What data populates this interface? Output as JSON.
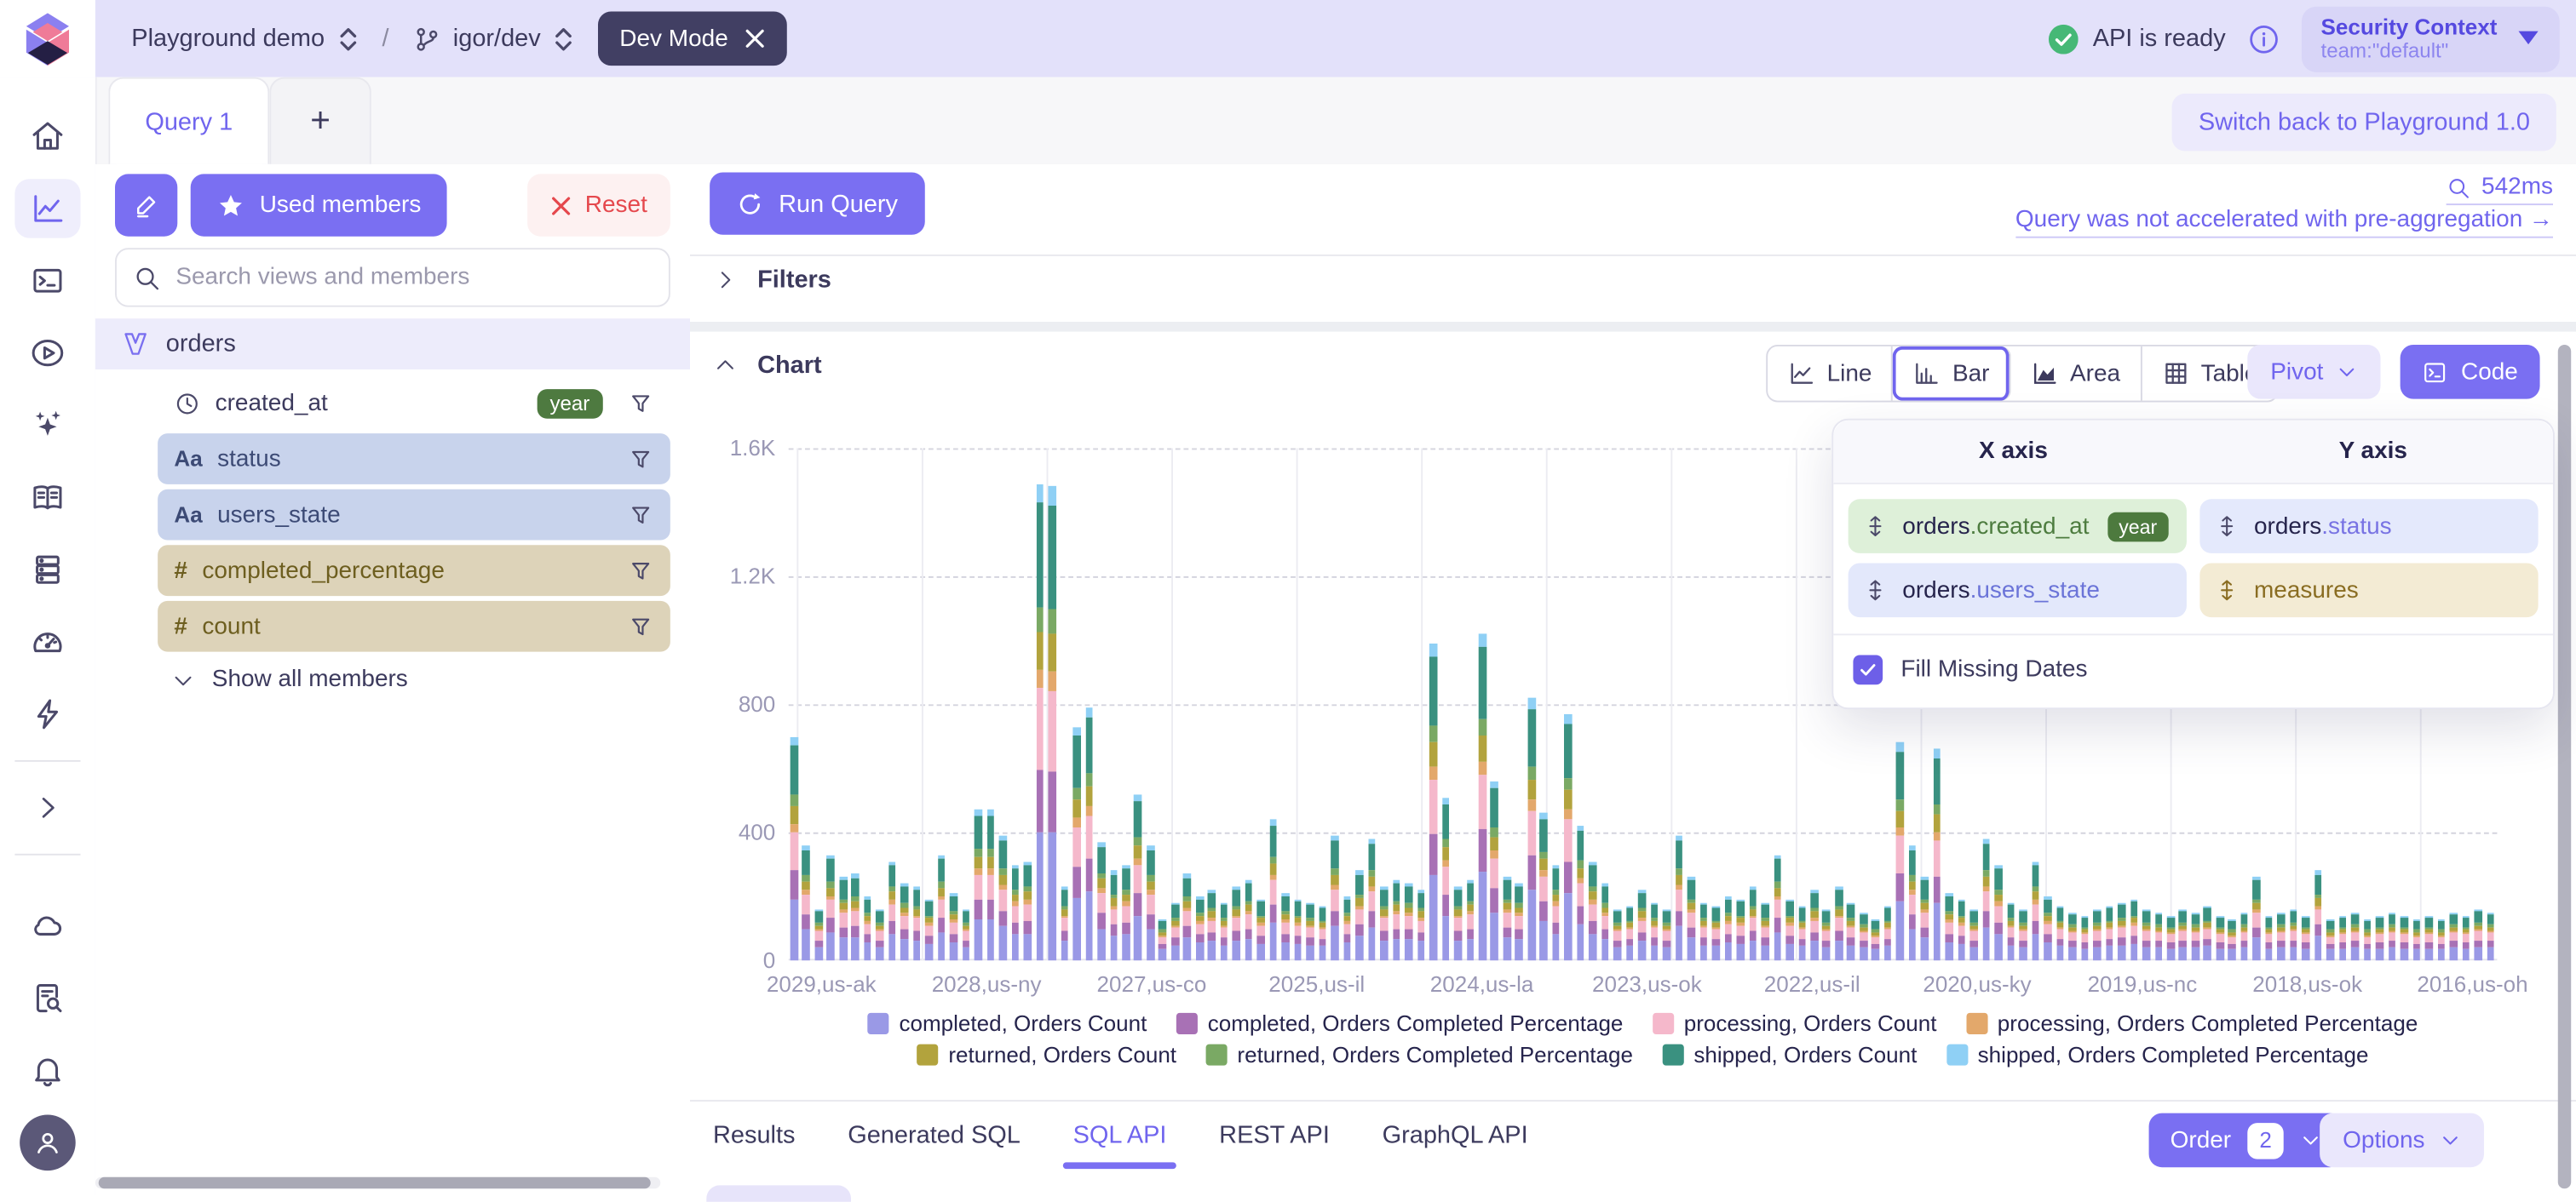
{
  "topbar": {
    "workspace": "Playground demo",
    "slash": "/",
    "branch": "igor/dev",
    "dev_mode": "Dev Mode",
    "api_status": "API is ready",
    "security_context": {
      "title": "Security Context",
      "subtitle": "team:\"default\""
    }
  },
  "tabs": {
    "query1": "Query 1",
    "add": "+",
    "switch_back": "Switch back to Playground 1.0"
  },
  "left_panel": {
    "used_members": "Used members",
    "reset": "Reset",
    "search_placeholder": "Search views and members",
    "cube": "orders",
    "members": [
      {
        "prefix": "",
        "label": "created_at",
        "badge": "year",
        "bg": "#ffffff",
        "color": "#3c3a5d",
        "prefix_color": "#3c3a5d",
        "icon": "clock"
      },
      {
        "prefix": "Aa",
        "label": "status",
        "badge": "",
        "bg": "#c8d3ec",
        "color": "#3c4a75",
        "prefix_color": "#3c4a75",
        "icon": "text"
      },
      {
        "prefix": "Aa",
        "label": "users_state",
        "badge": "",
        "bg": "#c8d3ec",
        "color": "#3c4a75",
        "prefix_color": "#3c4a75",
        "icon": "text"
      },
      {
        "prefix": "#",
        "label": "completed_percentage",
        "badge": "",
        "bg": "#ddd3b9",
        "color": "#6d5e1f",
        "prefix_color": "#6d5e1f",
        "icon": "number"
      },
      {
        "prefix": "#",
        "label": "count",
        "badge": "",
        "bg": "#ddd3b9",
        "color": "#6d5e1f",
        "prefix_color": "#6d5e1f",
        "icon": "number"
      }
    ],
    "show_all": "Show all members"
  },
  "toolbar": {
    "run_query": "Run Query",
    "timing": "542ms",
    "preagg_note": "Query was not accelerated with pre-aggregation →"
  },
  "sections": {
    "filters": "Filters",
    "chart": "Chart"
  },
  "chart_controls": {
    "types": [
      {
        "label": "Line"
      },
      {
        "label": "Bar",
        "selected": true
      },
      {
        "label": "Area"
      },
      {
        "label": "Table"
      }
    ],
    "pivot": "Pivot",
    "code": "Code"
  },
  "pivot_popover": {
    "x_axis_title": "X axis",
    "y_axis_title": "Y axis",
    "x_items": [
      {
        "prefix": "orders",
        "member": ".created_at",
        "badge": "year",
        "bg": "#def0d9",
        "member_color": "#4d7c3f"
      },
      {
        "prefix": "orders",
        "member": ".users_state",
        "badge": "",
        "bg": "#e3e8fb",
        "member_color": "#6b74d8"
      }
    ],
    "y_items": [
      {
        "prefix": "orders",
        "member": ".status",
        "badge": "",
        "bg": "#e4e9fc",
        "member_color": "#7873e3"
      },
      {
        "prefix": "",
        "member": "measures",
        "badge": "",
        "bg": "#f3ebd4",
        "member_color": "#8a6d22"
      }
    ],
    "fill_missing_dates": "Fill Missing Dates",
    "checkbox_checked": true,
    "checkbox_color": "#6d5fe8"
  },
  "chart_data": {
    "type": "bar",
    "stacked": true,
    "title": "",
    "ylim": [
      0,
      1600
    ],
    "yticks": [
      "1.6K",
      "1.2K",
      "800",
      "400",
      "0"
    ],
    "ytick_values": [
      1600,
      1200,
      800,
      400,
      0
    ],
    "xticks": [
      "2029,us-ak",
      "2028,us-ny",
      "2027,us-co",
      "2025,us-il",
      "2024,us-la",
      "2023,us-ok",
      "2022,us-il",
      "2020,us-ky",
      "2019,us-nc",
      "2018,us-ok",
      "2016,us-oh"
    ],
    "grid": true,
    "legend_position": "bottom",
    "series": [
      {
        "name": "completed, Orders Count",
        "color": "#9a99e6"
      },
      {
        "name": "completed, Orders Completed Percentage",
        "color": "#a871b5"
      },
      {
        "name": "processing, Orders Count",
        "color": "#f5b8cb"
      },
      {
        "name": "processing, Orders Completed Percentage",
        "color": "#e3a86b"
      },
      {
        "name": "returned, Orders Count",
        "color": "#b2a33d"
      },
      {
        "name": "returned, Orders Completed Percentage",
        "color": "#7aa964"
      },
      {
        "name": "shipped, Orders Count",
        "color": "#3a9180"
      },
      {
        "name": "shipped, Orders Completed Percentage",
        "color": "#8fd0f5"
      }
    ],
    "stack_fractions": [
      0.27,
      0.13,
      0.17,
      0.04,
      0.08,
      0.05,
      0.22,
      0.04
    ],
    "bar_totals": [
      700,
      360,
      160,
      330,
      260,
      270,
      200,
      160,
      310,
      240,
      230,
      190,
      330,
      210,
      160,
      470,
      470,
      390,
      300,
      310,
      1490,
      1480,
      230,
      730,
      790,
      370,
      280,
      300,
      520,
      360,
      130,
      180,
      270,
      200,
      220,
      180,
      230,
      250,
      190,
      440,
      210,
      190,
      180,
      170,
      390,
      200,
      280,
      380,
      230,
      250,
      240,
      220,
      990,
      510,
      230,
      250,
      1020,
      560,
      260,
      240,
      820,
      460,
      300,
      770,
      420,
      310,
      240,
      160,
      170,
      220,
      180,
      160,
      390,
      260,
      180,
      170,
      200,
      190,
      230,
      180,
      330,
      190,
      170,
      220,
      160,
      230,
      180,
      150,
      130,
      170,
      680,
      360,
      260,
      660,
      210,
      190,
      160,
      380,
      300,
      180,
      160,
      310,
      200,
      170,
      150,
      140,
      160,
      170,
      180,
      190,
      160,
      150,
      140,
      160,
      150,
      170,
      140,
      130,
      150,
      260,
      140,
      150,
      160,
      140,
      280,
      130,
      140,
      150,
      130,
      140,
      150,
      140,
      130,
      140,
      130,
      150,
      140,
      160,
      150
    ]
  },
  "bottom_tabs": {
    "items": [
      {
        "label": "Results"
      },
      {
        "label": "Generated SQL"
      },
      {
        "label": "SQL API",
        "active": true
      },
      {
        "label": "REST API"
      },
      {
        "label": "GraphQL API"
      }
    ],
    "order_label": "Order",
    "order_count": "2",
    "options_label": "Options"
  },
  "colors": {
    "accent": "#7065ee",
    "accent_bg": "#7a6ff2",
    "topbar_bg": "#e3e1fa",
    "success": "#46b876",
    "danger": "#e5484d",
    "year_badge": "#4e7a40"
  }
}
